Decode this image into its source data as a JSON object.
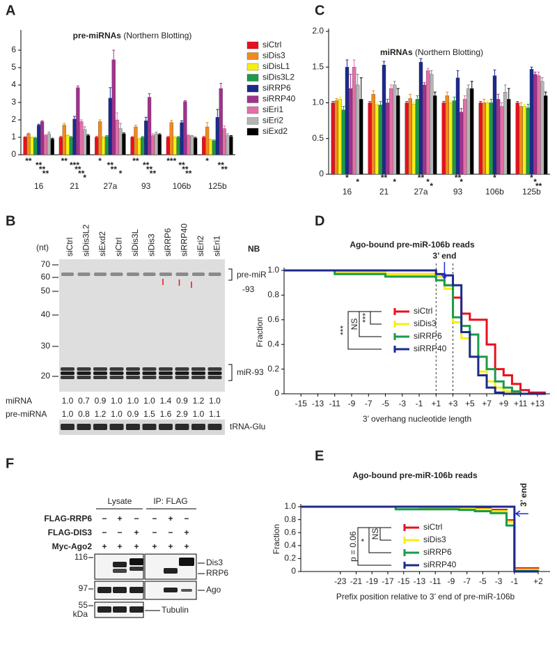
{
  "chart_data": [
    {
      "type": "bar",
      "panel": "A",
      "title": "pre-miRNAs",
      "title_note": "(Northern Blotting)",
      "categories": [
        "16",
        "21",
        "27a",
        "93",
        "106b",
        "125b"
      ],
      "ylim": [
        0,
        7
      ],
      "yticks": [
        0,
        1,
        2,
        3,
        4,
        5,
        6
      ],
      "series": [
        {
          "name": "siCtrl",
          "color": "#e8101e",
          "values": [
            1,
            1,
            1,
            1,
            1,
            1
          ],
          "errors": [
            0.03,
            0.05,
            0.05,
            0.04,
            0.05,
            0.05
          ]
        },
        {
          "name": "siDis3",
          "color": "#f08a1c",
          "values": [
            1.2,
            1.7,
            1.9,
            1.6,
            1.85,
            1.6
          ],
          "errors": [
            0.04,
            0.1,
            0.1,
            0.1,
            0.12,
            0.25
          ],
          "stars": [
            "**",
            "**",
            "*",
            "**",
            "***",
            "*"
          ]
        },
        {
          "name": "siDisL1",
          "color": "#f4f012",
          "values": [
            1.0,
            1.1,
            1.0,
            0.9,
            1.0,
            0.85
          ],
          "errors": [
            0.03,
            0.05,
            0.05,
            0.05,
            0.05,
            0.05
          ]
        },
        {
          "name": "siDis3L2",
          "color": "#1a9a4a",
          "values": [
            0.95,
            1.0,
            1.05,
            1.0,
            1.0,
            0.8
          ],
          "errors": [
            0.05,
            0.05,
            0.05,
            0.05,
            0.05,
            0.05
          ]
        },
        {
          "name": "siRRP6",
          "color": "#1c2a8c",
          "values": [
            1.7,
            2.05,
            3.25,
            1.95,
            1.85,
            2.15
          ],
          "errors": [
            0.05,
            0.15,
            0.6,
            0.2,
            0.1,
            0.45
          ],
          "stars": [
            "**",
            "***",
            "**",
            "**",
            "**",
            null
          ]
        },
        {
          "name": "siRRP40",
          "color": "#a0328c",
          "values": [
            1.9,
            3.85,
            5.45,
            3.3,
            3.05,
            3.8
          ],
          "errors": [
            0.05,
            0.1,
            0.55,
            0.2,
            0.05,
            0.3
          ],
          "stars": [
            "**",
            "**",
            "**",
            "**",
            "**",
            "**"
          ]
        },
        {
          "name": "siEri1",
          "color": "#e46ea8",
          "values": [
            1.1,
            1.9,
            2.0,
            1.1,
            1.1,
            1.5
          ],
          "errors": [
            0.05,
            0.1,
            0.4,
            0.1,
            0.05,
            0.15
          ],
          "stars": [
            "**",
            "**",
            null,
            "**",
            "**",
            "**"
          ]
        },
        {
          "name": "siEri2",
          "color": "#b4b4b4",
          "values": [
            1.2,
            1.45,
            1.5,
            1.2,
            1.05,
            1.1
          ],
          "errors": [
            0.1,
            0.15,
            0.3,
            0.1,
            0.05,
            0.1
          ],
          "stars": [
            null,
            "*",
            "*",
            null,
            null,
            null
          ]
        },
        {
          "name": "siExd2",
          "color": "#000000",
          "values": [
            0.9,
            1.1,
            1.2,
            1.15,
            0.95,
            1.05
          ],
          "errors": [
            0.05,
            0.05,
            0.05,
            0.05,
            0.05,
            0.05
          ]
        }
      ]
    },
    {
      "type": "bar",
      "panel": "C",
      "title": "miRNAs",
      "title_note": "(Northern Blotting)",
      "categories": [
        "16",
        "21",
        "27a",
        "93",
        "106b",
        "125b"
      ],
      "ylim": [
        0,
        2
      ],
      "yticks": [
        0,
        0.5,
        {
          "value": 1,
          "label": "1.0"
        },
        {
          "value": 1.5,
          "label": "1.5"
        },
        {
          "value": 2,
          "label": "2.0"
        }
      ],
      "series": [
        {
          "color": "#e8101e",
          "values": [
            1.0,
            1.0,
            1.0,
            1.0,
            1.0,
            1.0
          ],
          "errors": [
            0.02,
            0.02,
            0.02,
            0.02,
            0.02,
            0.02
          ]
        },
        {
          "color": "#f08a1c",
          "values": [
            1.03,
            1.12,
            1.06,
            1.1,
            1.0,
            0.95
          ],
          "errors": [
            0.03,
            0.05,
            0.06,
            0.05,
            0.05,
            0.05
          ]
        },
        {
          "color": "#f4f012",
          "values": [
            1.05,
            0.97,
            0.98,
            1.0,
            1.0,
            0.95
          ],
          "errors": [
            0.03,
            0.03,
            0.03,
            0.03,
            0.03,
            0.03
          ]
        },
        {
          "color": "#1a9a4a",
          "values": [
            0.9,
            0.97,
            1.05,
            1.03,
            1.0,
            0.93
          ],
          "errors": [
            0.05,
            0.05,
            0.05,
            0.05,
            0.05,
            0.05
          ]
        },
        {
          "color": "#1c2a8c",
          "values": [
            1.5,
            1.53,
            1.57,
            1.35,
            1.38,
            1.47
          ],
          "errors": [
            0.1,
            0.05,
            0.05,
            0.1,
            0.08,
            0.03
          ],
          "stars": [
            "*",
            "**",
            "**",
            "**",
            "*",
            "*"
          ]
        },
        {
          "color": "#a0328c",
          "values": [
            1.2,
            1.0,
            1.25,
            0.87,
            1.05,
            1.4
          ],
          "errors": [
            0.2,
            0.05,
            0.03,
            0.05,
            0.07,
            0.03
          ],
          "stars": [
            null,
            null,
            null,
            "*",
            null,
            "*"
          ]
        },
        {
          "color": "#e46ea8",
          "values": [
            1.5,
            1.2,
            1.45,
            1.05,
            0.95,
            1.38
          ],
          "errors": [
            0.1,
            0.05,
            0.03,
            0.05,
            0.05,
            0.05
          ],
          "stars": [
            null,
            null,
            "*",
            null,
            null,
            "**"
          ]
        },
        {
          "color": "#b4b4b4",
          "values": [
            1.25,
            1.25,
            1.4,
            1.2,
            1.15,
            1.3
          ],
          "errors": [
            0.15,
            0.05,
            0.05,
            0.05,
            0.1,
            0.05
          ],
          "stars": [
            "*",
            "*",
            "*",
            null,
            null,
            null
          ]
        },
        {
          "color": "#000000",
          "values": [
            1.05,
            1.1,
            1.1,
            1.2,
            1.05,
            1.1
          ],
          "errors": [
            0.3,
            0.1,
            0.05,
            0.1,
            0.15,
            0.05
          ]
        }
      ]
    },
    {
      "type": "line",
      "drawstyle": "steps-post",
      "panel": "D",
      "title": "Ago-bound pre-miR-106b reads",
      "xlabel": "3’ overhang nucleotide length",
      "ylabel": "Fraction",
      "xlim": [
        -17,
        14.5
      ],
      "ylim": [
        0,
        1
      ],
      "xticks": [
        -15,
        -13,
        -11,
        -9,
        -7,
        -5,
        -3,
        -1,
        {
          "value": 1,
          "label": "+1"
        },
        {
          "value": 3,
          "label": "+3"
        },
        {
          "value": 5,
          "label": "+5"
        },
        {
          "value": 7,
          "label": "+7"
        },
        {
          "value": 9,
          "label": "+9"
        },
        {
          "value": 11,
          "label": "+11"
        },
        {
          "value": 13,
          "label": "+13"
        }
      ],
      "xtick_colors": [
        "#222",
        "#222",
        "#222",
        "#222",
        "#222",
        "#222",
        "#222",
        "#222",
        "#222",
        "#e8101e",
        "#222",
        "#222",
        "#222",
        "#222",
        "#222"
      ],
      "yticks": [
        0,
        0.2,
        0.4,
        0.6,
        0.8,
        {
          "value": 1,
          "label": "1.0"
        }
      ],
      "x": [
        -17,
        -11,
        -5,
        1,
        2,
        3,
        4,
        5,
        6,
        7,
        8,
        9,
        10,
        11,
        12,
        14
      ],
      "series": [
        {
          "name": "siCtrl",
          "color": "#e8101e",
          "values": [
            1,
            0.99,
            0.97,
            0.95,
            0.88,
            0.78,
            0.65,
            0.6,
            0.6,
            0.4,
            0.2,
            0.15,
            0.08,
            0.03,
            0.01,
            0.01
          ]
        },
        {
          "name": "siDis3",
          "color": "#f4f012",
          "values": [
            1,
            0.99,
            0.97,
            0.95,
            0.85,
            0.58,
            0.45,
            0.3,
            0.18,
            0.1,
            0.05,
            0.02,
            0.01,
            0,
            0,
            0
          ]
        },
        {
          "name": "siRRP6",
          "color": "#1a9a4a",
          "values": [
            1,
            0.97,
            0.95,
            0.92,
            0.88,
            0.62,
            0.55,
            0.48,
            0.3,
            0.2,
            0.1,
            0.05,
            0.02,
            0,
            0,
            0
          ]
        },
        {
          "name": "siRRP40",
          "color": "#1c2a8c",
          "values": [
            1,
            1,
            1,
            0.97,
            0.96,
            0.88,
            0.5,
            0.3,
            0.15,
            0.05,
            0.01,
            0,
            0,
            0,
            0,
            0
          ]
        }
      ],
      "dashed_x": [
        1,
        3
      ],
      "end_marker": {
        "label": "3’ end",
        "x": 2,
        "color": "#1a2adc"
      },
      "stats": [
        "***",
        "NS",
        "***"
      ]
    },
    {
      "type": "line",
      "drawstyle": "steps-post",
      "panel": "E",
      "title": "Ago-bound pre-miR-106b reads",
      "xlabel": "Prefix position relative to 3’ end of pre-miR-106b",
      "ylabel": "Fraction",
      "xlim": [
        -28,
        3.5
      ],
      "ylim": [
        0,
        1
      ],
      "xticks": [
        -23,
        -21,
        -19,
        -17,
        -15,
        -13,
        -11,
        -9,
        -7,
        -5,
        -3,
        -1,
        {
          "value": 2,
          "label": "+2"
        }
      ],
      "xtick_colors": [
        "#222",
        "#222",
        "#222",
        "#222",
        "#222",
        "#222",
        "#222",
        "#222",
        "#222",
        "#222",
        "#222",
        "#e8101e",
        "#222"
      ],
      "yticks": [
        0,
        0.2,
        0.4,
        0.6,
        0.8,
        {
          "value": 1,
          "label": "1.0"
        }
      ],
      "x": [
        -28,
        -16,
        -13,
        -8,
        -6,
        -4,
        -2,
        -1,
        2
      ],
      "series": [
        {
          "name": "siCtrl",
          "color": "#e8101e",
          "values": [
            1,
            1,
            0.99,
            0.98,
            0.97,
            0.95,
            0.79,
            0.05,
            0
          ]
        },
        {
          "name": "siDis3",
          "color": "#f4f012",
          "values": [
            1,
            1,
            0.99,
            0.97,
            0.96,
            0.93,
            0.77,
            0.03,
            0
          ]
        },
        {
          "name": "siRRP6",
          "color": "#1a9a4a",
          "values": [
            1,
            0.96,
            0.96,
            0.95,
            0.93,
            0.9,
            0.71,
            0.01,
            0
          ]
        },
        {
          "name": "siRRP40",
          "color": "#1c2a8c",
          "values": [
            1,
            1,
            1,
            1,
            1,
            1,
            1,
            0,
            0
          ]
        }
      ],
      "end_marker": {
        "label": "3’ end",
        "x": -1,
        "color": "#1a2adc"
      },
      "stats": [
        "p = 0.06",
        "*",
        "NS"
      ]
    }
  ],
  "blots": {
    "nb": {
      "panel": "B",
      "unit": "(nt)",
      "label": "NB",
      "lanes": [
        "siCtrl",
        "siDis3L2",
        "siExd2",
        "siCtrl",
        "siDis3L",
        "siDis3",
        "siRRP6",
        "siRRP40",
        "siEri2",
        "siEri1"
      ],
      "size_markers": [
        "70",
        "60",
        "50",
        "40",
        "30",
        "20"
      ],
      "pre_band_label": [
        "pre-miR",
        "-93"
      ],
      "band_label": "miR-93",
      "loading_label": "tRNA-Glu",
      "rows": [
        {
          "name": "miRNA",
          "values": [
            "1.0",
            "0.7",
            "0.9",
            "1.0",
            "1.0",
            "1.0",
            "1.4",
            "0.9",
            "1.2",
            "1.0"
          ],
          "colors": [
            "#222",
            "#222",
            "#222",
            "#222",
            "#222",
            "#222",
            "#e8101e",
            "#222",
            "#222",
            "#222"
          ]
        },
        {
          "name": "pre-miRNA",
          "values": [
            "1.0",
            "0.8",
            "1.2",
            "1.0",
            "0.9",
            "1.5",
            "1.6",
            "2.9",
            "1.0",
            "1.1"
          ],
          "colors": [
            "#222",
            "#222",
            "#222",
            "#222",
            "#222",
            "#e8101e",
            "#e8101e",
            "#e8101e",
            "#222",
            "#222"
          ]
        }
      ]
    },
    "ip": {
      "panel": "F",
      "groups": [
        "Lysate",
        "IP: FLAG"
      ],
      "rows": [
        {
          "name": "FLAG-RRP6",
          "signs": [
            "−",
            "+",
            "−",
            "−",
            "+",
            "−"
          ]
        },
        {
          "name": "FLAG-DIS3",
          "signs": [
            "−",
            "−",
            "+",
            "−",
            "−",
            "+"
          ]
        },
        {
          "name": "Myc-Ago2",
          "signs": [
            "+",
            "+",
            "+",
            "+",
            "+",
            "+"
          ]
        }
      ],
      "markers": [
        "116",
        "97",
        "55"
      ],
      "unit": "kDa",
      "bands": [
        "Dis3",
        "RRP6",
        "Ago",
        "Tubulin"
      ]
    }
  }
}
